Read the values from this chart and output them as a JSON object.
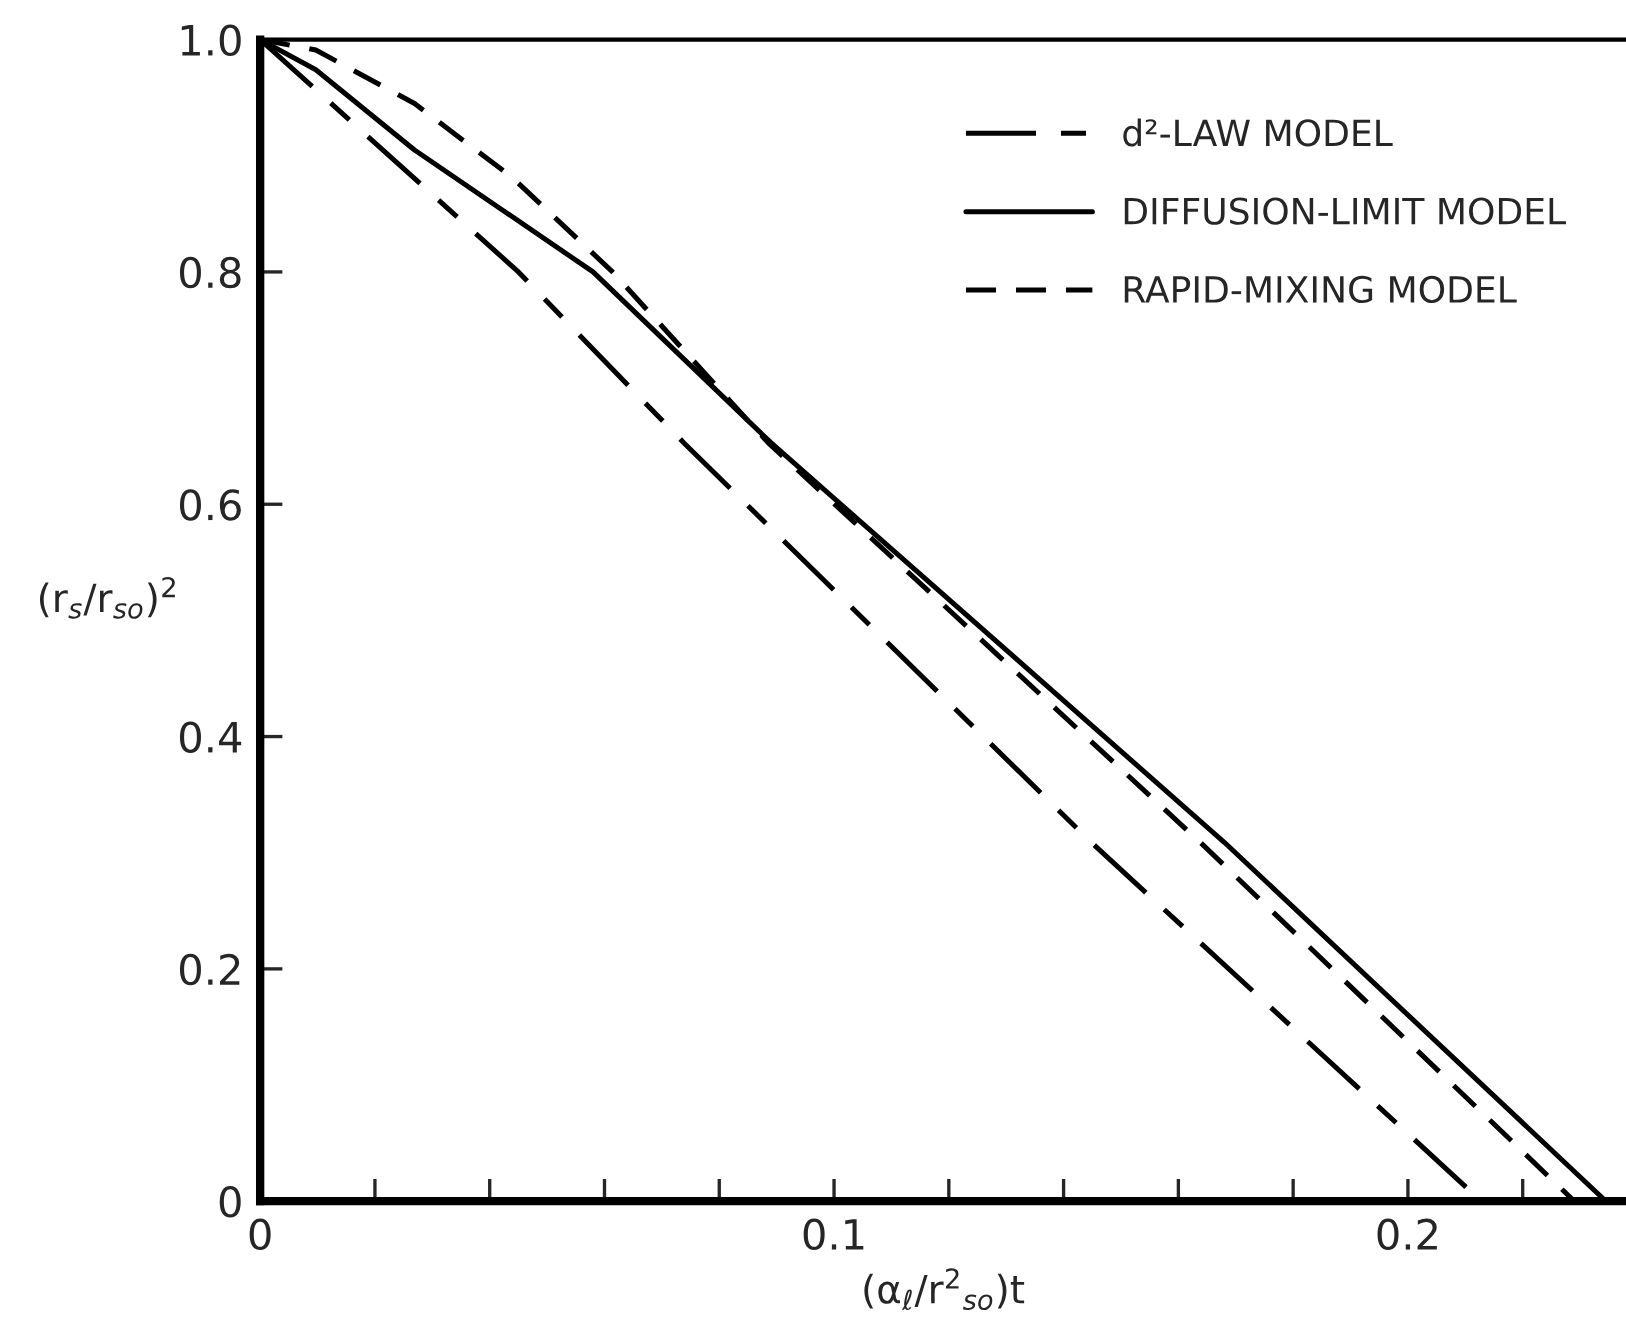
{
  "chart_data": {
    "type": "line",
    "xlabel": "(α$_{ℓ}$/r$^{2}$$_{so}$)t",
    "ylabel": "(r$_{s}$/r$_{so}$)$^{2}$",
    "series": [
      {
        "name": "d²-LAW MODEL",
        "color": "#000000",
        "line_style": "dashdot",
        "x": [
          0,
          0.045,
          0.0738,
          0.1448,
          0.2128
        ],
        "values": [
          1,
          0.8,
          0.653,
          0.309,
          0
        ]
      },
      {
        "name": "DIFFUSION-LIMIT MODEL",
        "color": "#000000",
        "line_style": "solid",
        "x": [
          0,
          0.0097,
          0.0269,
          0.058,
          0.089,
          0.168,
          0.2345
        ],
        "values": [
          1,
          0.974,
          0.905,
          0.8,
          0.653,
          0.309,
          0
        ]
      },
      {
        "name": "RAPID-MIXING MODEL",
        "color": "#000000",
        "line_style": "dashed",
        "x": [
          0,
          0.0097,
          0.0269,
          0.044,
          0.0614,
          0.0885,
          0.1638,
          0.229
        ],
        "values": [
          1,
          0.991,
          0.945,
          0.881,
          0.8,
          0.653,
          0.309,
          0
        ]
      }
    ],
    "xlim": [
      0,
      0.238
    ],
    "ylim": [
      0,
      1.0
    ],
    "xticks": [
      0,
      {
        "value": 0.02,
        "label": null
      },
      {
        "value": 0.04,
        "label": null
      },
      {
        "value": 0.06,
        "label": null
      },
      {
        "value": 0.08,
        "label": null
      },
      {
        "value": 0.1,
        "label": "0.1"
      },
      {
        "value": 0.12,
        "label": null
      },
      {
        "value": 0.14,
        "label": null
      },
      {
        "value": 0.16,
        "label": null
      },
      {
        "value": 0.18,
        "label": null
      },
      {
        "value": 0.2,
        "label": "0.2"
      },
      {
        "value": 0.22,
        "label": null
      }
    ],
    "yticks": [
      0,
      {
        "value": 0.2,
        "label": "0.2"
      },
      {
        "value": 0.4,
        "label": "0.4"
      },
      {
        "value": 0.6,
        "label": "0.6"
      },
      {
        "value": 0.8,
        "label": "0.8"
      },
      {
        "value": 1.0,
        "label": "1.0"
      }
    ],
    "legend": "top right",
    "grid": false,
    "marker": "none"
  }
}
